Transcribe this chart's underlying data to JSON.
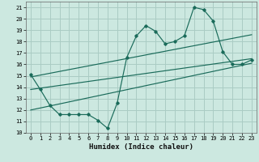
{
  "title": "",
  "xlabel": "Humidex (Indice chaleur)",
  "ylabel": "",
  "background_color": "#cce8e0",
  "grid_color": "#aaccC4",
  "line_color": "#1a6b5a",
  "xlim": [
    -0.5,
    23.5
  ],
  "ylim": [
    10,
    21.5
  ],
  "yticks": [
    10,
    11,
    12,
    13,
    14,
    15,
    16,
    17,
    18,
    19,
    20,
    21
  ],
  "xticks": [
    0,
    1,
    2,
    3,
    4,
    5,
    6,
    7,
    8,
    9,
    10,
    11,
    12,
    13,
    14,
    15,
    16,
    17,
    18,
    19,
    20,
    21,
    22,
    23
  ],
  "main_line_x": [
    0,
    1,
    2,
    3,
    4,
    5,
    6,
    7,
    8,
    9,
    10,
    11,
    12,
    13,
    14,
    15,
    16,
    17,
    18,
    19,
    20,
    21,
    22,
    23
  ],
  "main_line_y": [
    15.1,
    13.8,
    12.4,
    11.6,
    11.6,
    11.6,
    11.6,
    11.1,
    10.4,
    12.6,
    16.6,
    18.5,
    19.4,
    18.9,
    17.8,
    18.0,
    18.5,
    21.0,
    20.8,
    19.8,
    17.1,
    16.0,
    16.0,
    16.4
  ],
  "trend1_x": [
    0,
    23
  ],
  "trend1_y": [
    13.8,
    16.5
  ],
  "trend2_x": [
    0,
    23
  ],
  "trend2_y": [
    12.0,
    16.1
  ],
  "trend3_x": [
    0,
    23
  ],
  "trend3_y": [
    14.9,
    18.6
  ]
}
